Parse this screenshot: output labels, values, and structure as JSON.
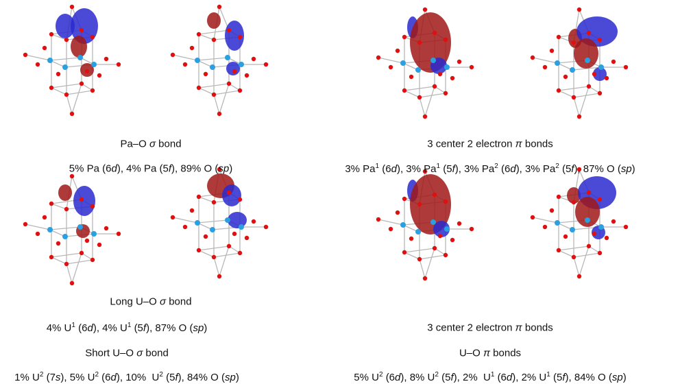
{
  "captions": [
    {
      "lines": [
        [
          {
            "text": "Pa–O "
          },
          {
            "text": "σ",
            "style": "i"
          },
          {
            "text": " bond"
          }
        ],
        [
          {
            "text": "5% Pa (6"
          },
          {
            "text": "d",
            "style": "i"
          },
          {
            "text": "), 4% Pa (5"
          },
          {
            "text": "f",
            "style": "i"
          },
          {
            "text": "), 89% O ("
          },
          {
            "text": "sp",
            "style": "i"
          },
          {
            "text": ")"
          }
        ]
      ]
    },
    {
      "lines": [
        [
          {
            "text": "3 center 2 electron "
          },
          {
            "text": "π",
            "style": "i"
          },
          {
            "text": " bonds"
          }
        ],
        [
          {
            "text": "3% Pa"
          },
          {
            "text": "1",
            "style": "sup"
          },
          {
            "text": " (6"
          },
          {
            "text": "d",
            "style": "i"
          },
          {
            "text": "), 3% Pa"
          },
          {
            "text": "1",
            "style": "sup"
          },
          {
            "text": " (5"
          },
          {
            "text": "f",
            "style": "i"
          },
          {
            "text": "), 3% Pa"
          },
          {
            "text": "2",
            "style": "sup"
          },
          {
            "text": " (6"
          },
          {
            "text": "d",
            "style": "i"
          },
          {
            "text": "), 3% Pa"
          },
          {
            "text": "2",
            "style": "sup"
          },
          {
            "text": " (5"
          },
          {
            "text": "f",
            "style": "i"
          },
          {
            "text": "), 87% O ("
          },
          {
            "text": "sp",
            "style": "i"
          },
          {
            "text": ")"
          }
        ]
      ]
    },
    {
      "lines": [
        [
          {
            "text": "Long U–O "
          },
          {
            "text": "σ",
            "style": "i"
          },
          {
            "text": " bond"
          }
        ],
        [
          {
            "text": "4% U"
          },
          {
            "text": "1",
            "style": "sup"
          },
          {
            "text": " (6"
          },
          {
            "text": "d",
            "style": "i"
          },
          {
            "text": "), 4% U"
          },
          {
            "text": "1",
            "style": "sup"
          },
          {
            "text": " (5"
          },
          {
            "text": "f",
            "style": "i"
          },
          {
            "text": "), 87% O ("
          },
          {
            "text": "sp",
            "style": "i"
          },
          {
            "text": ")"
          }
        ],
        [
          {
            "text": "Short U–O "
          },
          {
            "text": "σ",
            "style": "i"
          },
          {
            "text": " bond"
          }
        ],
        [
          {
            "text": "1% U"
          },
          {
            "text": "2",
            "style": "sup"
          },
          {
            "text": " (7"
          },
          {
            "text": "s",
            "style": "i"
          },
          {
            "text": "), 5% U"
          },
          {
            "text": "2",
            "style": "sup"
          },
          {
            "text": " (6"
          },
          {
            "text": "d",
            "style": "i"
          },
          {
            "text": "), 10%  U"
          },
          {
            "text": "2",
            "style": "sup"
          },
          {
            "text": " (5"
          },
          {
            "text": "f",
            "style": "i"
          },
          {
            "text": "), 84% O ("
          },
          {
            "text": "sp",
            "style": "i"
          },
          {
            "text": ")"
          }
        ]
      ]
    },
    {
      "lines": [
        [
          {
            "text": "3 center 2 electron "
          },
          {
            "text": "π",
            "style": "i"
          },
          {
            "text": " bonds"
          }
        ],
        [
          {
            "text": "U–O "
          },
          {
            "text": "π",
            "style": "i"
          },
          {
            "text": " bonds"
          }
        ],
        [
          {
            "text": "5% U"
          },
          {
            "text": "2",
            "style": "sup"
          },
          {
            "text": " (6"
          },
          {
            "text": "d",
            "style": "i"
          },
          {
            "text": "), 8% U"
          },
          {
            "text": "2",
            "style": "sup"
          },
          {
            "text": " (5"
          },
          {
            "text": "f",
            "style": "i"
          },
          {
            "text": "), 2%  U"
          },
          {
            "text": "1",
            "style": "sup"
          },
          {
            "text": " (6"
          },
          {
            "text": "d",
            "style": "i"
          },
          {
            "text": "), 2% U"
          },
          {
            "text": "1",
            "style": "sup"
          },
          {
            "text": " (5"
          },
          {
            "text": "f",
            "style": "i"
          },
          {
            "text": "), 84% O ("
          },
          {
            "text": "sp",
            "style": "i"
          },
          {
            "text": ")"
          }
        ]
      ]
    }
  ]
}
